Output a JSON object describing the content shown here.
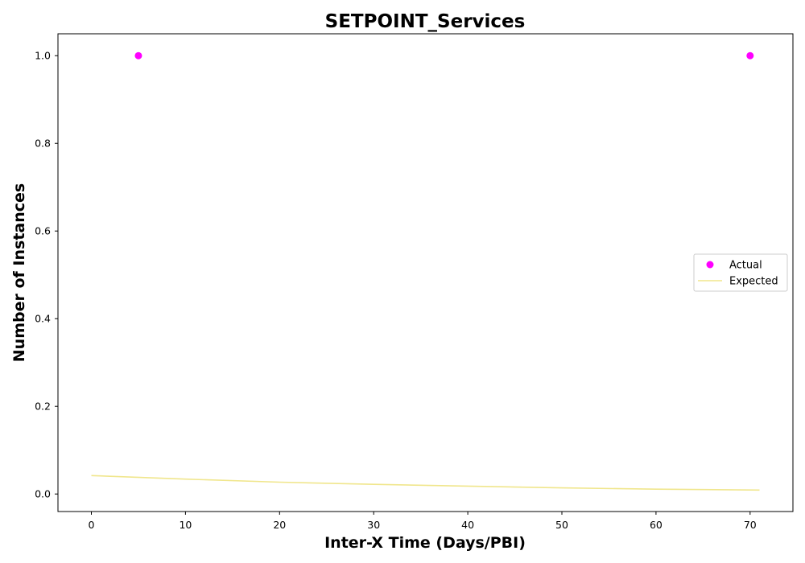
{
  "chart_data": {
    "type": "scatter",
    "title": "SETPOINT_Services",
    "xlabel": "Inter-X Time (Days/PBI)",
    "ylabel": "Number of Instances",
    "xlim": [
      -3.55,
      74.55
    ],
    "ylim": [
      -0.04,
      1.05
    ],
    "xticks": [
      0,
      10,
      20,
      30,
      40,
      50,
      60,
      70
    ],
    "xtick_labels": [
      "0",
      "10",
      "20",
      "30",
      "40",
      "50",
      "60",
      "70"
    ],
    "yticks": [
      0.0,
      0.2,
      0.4,
      0.6,
      0.8,
      1.0
    ],
    "ytick_labels": [
      "0.0",
      "0.2",
      "0.4",
      "0.6",
      "0.8",
      "1.0"
    ],
    "grid": false,
    "legend_position": "center-right",
    "series": [
      {
        "name": "Actual",
        "kind": "scatter",
        "color": "#ff00ff",
        "x": [
          5,
          70
        ],
        "y": [
          1.0,
          1.0
        ]
      },
      {
        "name": "Expected",
        "kind": "line",
        "color": "#f0e68c",
        "x": [
          0,
          10,
          20,
          30,
          40,
          50,
          60,
          71
        ],
        "y": [
          0.042,
          0.034,
          0.027,
          0.022,
          0.018,
          0.014,
          0.011,
          0.009
        ]
      }
    ]
  }
}
